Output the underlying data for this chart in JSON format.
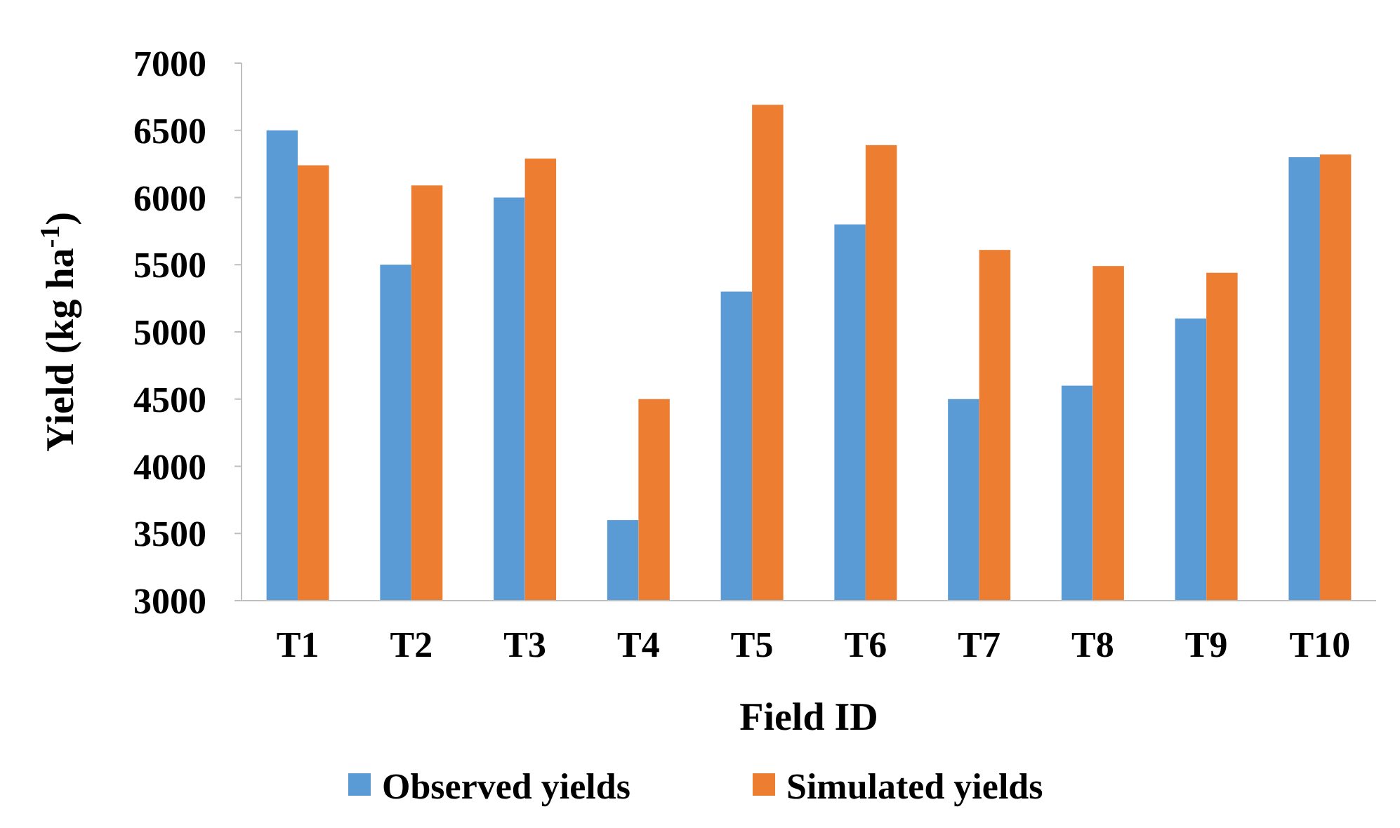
{
  "chart_data": {
    "type": "bar",
    "xlabel": "Field ID",
    "ylabel": "Yield  (kg ha$^{-1}$)",
    "categories": [
      "T1",
      "T2",
      "T3",
      "T4",
      "T5",
      "T6",
      "T7",
      "T8",
      "T9",
      "T10"
    ],
    "series": [
      {
        "name": "Observed yields",
        "color": "#5b9bd5",
        "values": [
          6500,
          5500,
          6000,
          3600,
          5300,
          5800,
          4500,
          4600,
          5100,
          6300
        ]
      },
      {
        "name": "Simulated yields",
        "color": "#ed7d31",
        "values": [
          6240,
          6090,
          6290,
          4500,
          6690,
          6390,
          5610,
          5490,
          5440,
          6320
        ]
      }
    ],
    "ylim": [
      3000,
      7000
    ],
    "yticks": [
      3000,
      3500,
      4000,
      4500,
      5000,
      5500,
      6000,
      6500,
      7000
    ],
    "grid": false,
    "legend": "bottom"
  }
}
